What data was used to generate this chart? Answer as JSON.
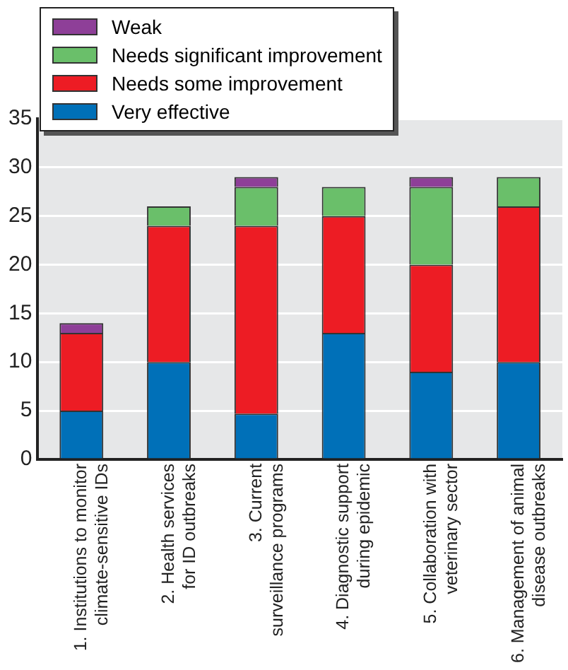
{
  "chart_data": {
    "type": "bar",
    "stacked": true,
    "categories": [
      "1. Institutions to monitor climate-sensitive IDs",
      "2. Health services for ID outbreaks",
      "3. Current surveillance programs",
      "4. Diagnostic support during epidemic",
      "5. Collaboration with veterinary sector",
      "6. Management of animal disease outbreaks"
    ],
    "series": [
      {
        "name": "Very effective",
        "color": "#0070b8",
        "values": [
          5,
          10,
          4.7,
          13,
          9,
          10
        ]
      },
      {
        "name": "Needs some improvement",
        "color": "#ed1c24",
        "values": [
          8,
          14,
          19.3,
          12,
          11,
          16
        ]
      },
      {
        "name": "Needs significant improvement",
        "color": "#6abf6a",
        "values": [
          0,
          2,
          4,
          3,
          8,
          3
        ]
      },
      {
        "name": "Weak",
        "color": "#8e3f98",
        "values": [
          1,
          0,
          1,
          0,
          1,
          0
        ]
      }
    ],
    "ylim": [
      0,
      35
    ],
    "yticks": [
      0,
      5,
      10,
      15,
      20,
      25,
      30,
      35
    ],
    "grid": "y",
    "legend": "top left"
  }
}
